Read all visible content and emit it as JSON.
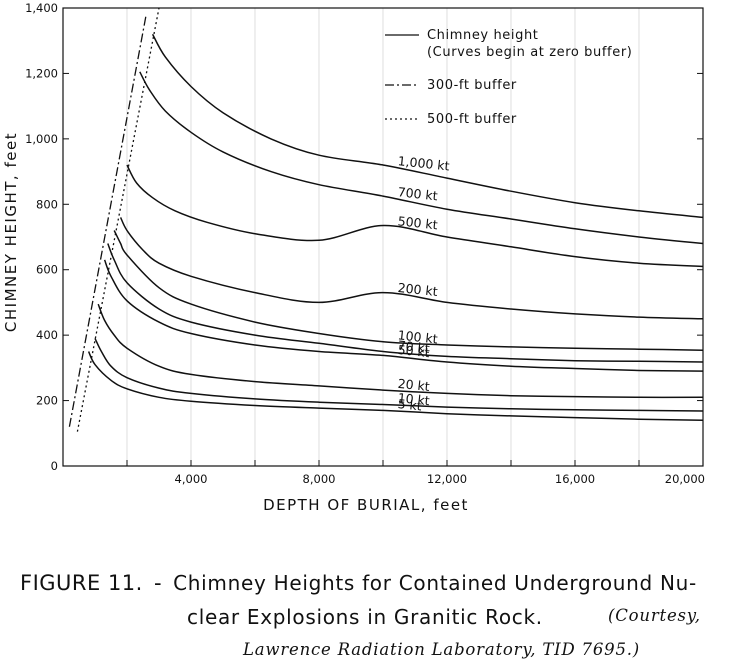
{
  "chart_data": {
    "type": "line",
    "xlabel": "DEPTH OF BURIAL, feet",
    "ylabel": "CHIMNEY HEIGHT, feet",
    "xlim": [
      0,
      20000
    ],
    "ylim": [
      0,
      1400
    ],
    "x_ticks": [
      4000,
      8000,
      12000,
      16000,
      20000
    ],
    "x_tick_labels": [
      "4,000",
      "8,000",
      "12,000",
      "16,000",
      "20,000"
    ],
    "y_ticks": [
      0,
      200,
      400,
      600,
      800,
      1000,
      1200,
      1400
    ],
    "y_tick_labels": [
      "0",
      "200",
      "400",
      "600",
      "800",
      "1,000",
      "1,200",
      "1,400"
    ],
    "legend": {
      "placement": "top-right",
      "entries": [
        {
          "style": "solid",
          "label": "Chimney height",
          "label2": "(Curves begin at zero buffer)"
        },
        {
          "style": "dash-dot",
          "label": "300-ft buffer"
        },
        {
          "style": "dotted",
          "label": "500-ft buffer"
        }
      ]
    },
    "series": [
      {
        "name": "5 kt",
        "label": "5 kt",
        "x": [
          800,
          1000,
          1500,
          2000,
          3000,
          4000,
          6000,
          8000,
          10000,
          12000,
          14000,
          16000,
          18000,
          20000
        ],
        "y": [
          350,
          310,
          262,
          236,
          210,
          198,
          185,
          177,
          170,
          160,
          153,
          148,
          143,
          140
        ]
      },
      {
        "name": "10 kt",
        "label": "10 kt",
        "x": [
          1000,
          1200,
          1500,
          2000,
          3000,
          4000,
          6000,
          8000,
          10000,
          12000,
          14000,
          16000,
          18000,
          20000
        ],
        "y": [
          390,
          350,
          305,
          270,
          238,
          222,
          205,
          195,
          188,
          180,
          175,
          172,
          170,
          168
        ]
      },
      {
        "name": "20 kt",
        "label": "20 kt",
        "x": [
          1100,
          1300,
          1600,
          2000,
          3000,
          4000,
          6000,
          8000,
          10000,
          12000,
          14000,
          16000,
          18000,
          20000
        ],
        "y": [
          495,
          445,
          400,
          360,
          305,
          280,
          258,
          245,
          232,
          222,
          215,
          212,
          210,
          210
        ]
      },
      {
        "name": "50 kt",
        "label": "50 kt",
        "x": [
          1300,
          1500,
          2000,
          3000,
          4000,
          6000,
          8000,
          10000,
          12000,
          14000,
          16000,
          18000,
          20000
        ],
        "y": [
          630,
          580,
          505,
          440,
          405,
          370,
          350,
          338,
          318,
          305,
          298,
          292,
          290
        ]
      },
      {
        "name": "70 kt",
        "label": "70 kt",
        "x": [
          1400,
          1600,
          2000,
          3000,
          4000,
          6000,
          8000,
          10000,
          12000,
          14000,
          16000,
          18000,
          20000
        ],
        "y": [
          680,
          630,
          560,
          480,
          440,
          400,
          375,
          350,
          335,
          328,
          322,
          320,
          318
        ]
      },
      {
        "name": "100 kt",
        "label": "100 kt",
        "x": [
          1600,
          1800,
          2000,
          3000,
          4000,
          6000,
          8000,
          10000,
          12000,
          14000,
          16000,
          18000,
          20000
        ],
        "y": [
          720,
          680,
          645,
          545,
          495,
          440,
          405,
          380,
          370,
          364,
          360,
          357,
          354
        ]
      },
      {
        "name": "200 kt",
        "label": "200 kt",
        "x": [
          1800,
          2000,
          2500,
          3000,
          4000,
          6000,
          8000,
          10000,
          12000,
          14000,
          16000,
          18000,
          20000
        ],
        "y": [
          760,
          720,
          660,
          620,
          580,
          530,
          500,
          530,
          500,
          480,
          465,
          455,
          450
        ]
      },
      {
        "name": "500 kt",
        "label": "500 kt",
        "x": [
          2000,
          2300,
          2800,
          3500,
          4500,
          6000,
          8000,
          10000,
          12000,
          14000,
          16000,
          18000,
          20000
        ],
        "y": [
          920,
          865,
          820,
          780,
          745,
          710,
          690,
          735,
          700,
          670,
          640,
          620,
          610
        ]
      },
      {
        "name": "700 kt",
        "label": "700 kt",
        "x": [
          2400,
          2700,
          3200,
          4000,
          5000,
          6500,
          8000,
          10000,
          12000,
          14000,
          16000,
          18000,
          20000
        ],
        "y": [
          1205,
          1150,
          1085,
          1020,
          960,
          900,
          860,
          825,
          785,
          755,
          725,
          700,
          680
        ]
      },
      {
        "name": "1,000 kt",
        "label": "1,000 kt",
        "x": [
          2800,
          3200,
          4000,
          5000,
          6500,
          8000,
          10000,
          12000,
          14000,
          16000,
          18000,
          20000
        ],
        "y": [
          1320,
          1250,
          1160,
          1080,
          1000,
          950,
          920,
          880,
          840,
          805,
          780,
          760
        ]
      },
      {
        "name": "300-ft buffer",
        "style": "dash-dot",
        "x": [
          200,
          2600
        ],
        "y": [
          120,
          1380
        ]
      },
      {
        "name": "500-ft buffer",
        "style": "dotted",
        "x": [
          450,
          3000
        ],
        "y": [
          105,
          1400
        ]
      }
    ]
  },
  "caption": {
    "figure_number": "FIGURE 11.",
    "separator": "-",
    "text_line1": "Chimney Heights for Contained Underground Nu-",
    "text_line2": "clear Explosions in Granitic Rock.",
    "credit_line1": "(Courtesy,",
    "credit_line2": "Lawrence Radiation Laboratory, TID 7695.)"
  }
}
